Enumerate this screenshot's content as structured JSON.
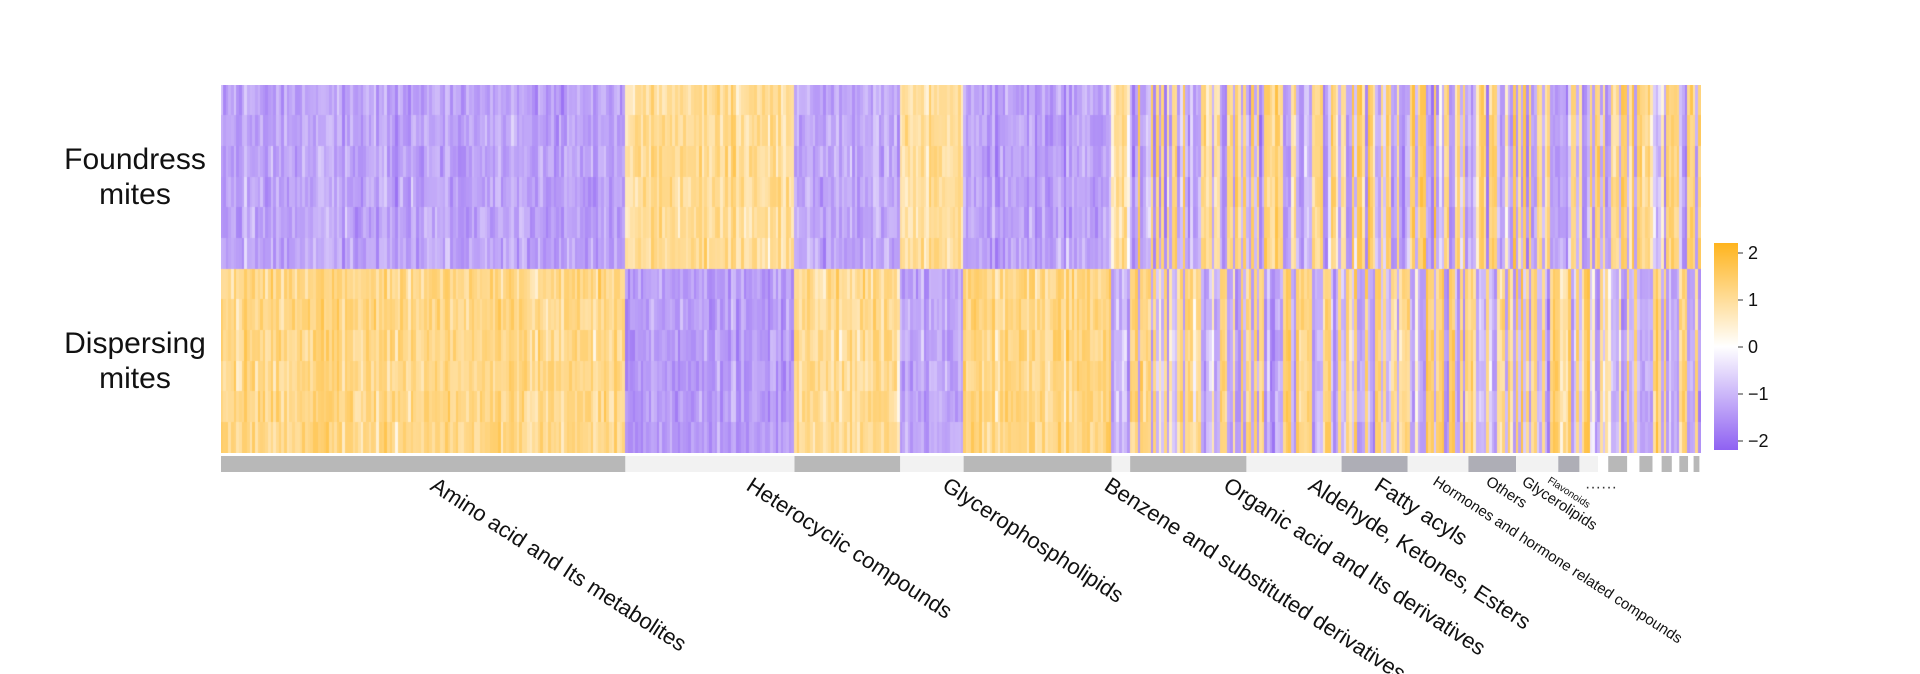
{
  "chart_data": {
    "type": "heatmap",
    "row_groups": [
      {
        "line1": "Foundress",
        "line2": "mites"
      },
      {
        "line1": "Dispersing",
        "line2": "mites"
      }
    ],
    "rows_per_group": 6,
    "color_scale": {
      "min": -2,
      "max": 2,
      "ticks": [
        "2",
        "1",
        "0",
        "−1",
        "−2"
      ],
      "low_color": "#8f62f2",
      "mid_color": "#ffffff",
      "high_color": "#ffb41e"
    },
    "columns": 560,
    "categories": [
      {
        "name": "Amino acid and Its metabolites",
        "approx_share": 0.301,
        "foundress_mean": -1.0,
        "dispersing_mean": 0.85
      },
      {
        "name": "",
        "approx_share": 0.126,
        "foundress_mean": 0.75,
        "dispersing_mean": -1.05
      },
      {
        "name": "Heterocyclic compounds",
        "approx_share": 0.078,
        "foundress_mean": -0.85,
        "dispersing_mean": 0.8
      },
      {
        "name": "",
        "approx_share": 0.046,
        "foundress_mean": 0.7,
        "dispersing_mean": -0.9
      },
      {
        "name": "Glycerophospholipids",
        "approx_share": 0.11,
        "foundress_mean": -1.0,
        "dispersing_mean": 0.9
      },
      {
        "name": "",
        "approx_share": 0.014,
        "foundress_mean": 0.5,
        "dispersing_mean": -0.8
      },
      {
        "name": "Benzene and substituted derivatives",
        "approx_share": 0.088,
        "foundress_mean": 0.0,
        "dispersing_mean": 0.0
      },
      {
        "name": "Organic acid and Its derivatives",
        "approx_share": 0.069,
        "foundress_mean": 0.0,
        "dispersing_mean": 0.0
      },
      {
        "name": "Aldehyde, Ketones, Esters",
        "approx_share": 0.049,
        "foundress_mean": 0.0,
        "dispersing_mean": 0.0
      },
      {
        "name": "Fatty acyls",
        "approx_share": 0.046,
        "foundress_mean": 0.0,
        "dispersing_mean": 0.0
      },
      {
        "name": "Hormones and hormone related compounds",
        "approx_share": 0.036,
        "foundress_mean": 0.0,
        "dispersing_mean": 0.0
      },
      {
        "name": "Others",
        "approx_share": 0.031,
        "foundress_mean": 0.0,
        "dispersing_mean": 0.0
      },
      {
        "name": "Glycerolipids",
        "approx_share": 0.015,
        "foundress_mean": 0.0,
        "dispersing_mean": 0.0
      },
      {
        "name": "Flavonoids",
        "approx_share": 0.015,
        "foundress_mean": 0.0,
        "dispersing_mean": 0.0
      },
      {
        "name": "",
        "approx_share": 0.024,
        "foundress_mean": 0.0,
        "dispersing_mean": 0.0
      },
      {
        "name": "",
        "approx_share": 0.018,
        "foundress_mean": 0.0,
        "dispersing_mean": 0.0
      },
      {
        "name": "",
        "approx_share": 0.015,
        "foundress_mean": 0.0,
        "dispersing_mean": 0.0
      },
      {
        "name": "",
        "approx_share": 0.012,
        "foundress_mean": 0.0,
        "dispersing_mean": 0.0
      },
      {
        "name": "",
        "approx_share": 0.007,
        "foundress_mean": 0.0,
        "dispersing_mean": 0.0
      }
    ],
    "ellipsis": "······",
    "annotation_colors": [
      "#b8b8b8",
      "#f2f2f2",
      "#aeaeb6"
    ],
    "legend": false,
    "grid": false
  }
}
